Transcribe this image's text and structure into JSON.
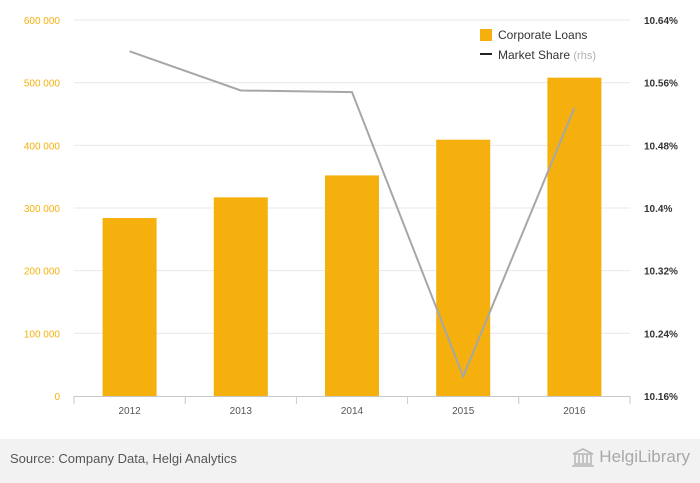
{
  "chart_data": {
    "type": "bar+line",
    "categories": [
      "2012",
      "2013",
      "2014",
      "2015",
      "2016"
    ],
    "series": [
      {
        "name": "Corporate Loans",
        "type": "bar",
        "axis": "left",
        "values": [
          284000,
          317000,
          352000,
          409000,
          508000
        ],
        "color": "#f5b00d"
      },
      {
        "name": "Market Share",
        "name_suffix": "(rhs)",
        "type": "line",
        "axis": "right",
        "values": [
          10.6,
          10.55,
          10.548,
          10.185,
          10.528
        ],
        "color": "#a7a7a7"
      }
    ],
    "y_left": {
      "range": [
        0,
        600000
      ],
      "ticks": [
        0,
        100000,
        200000,
        300000,
        400000,
        500000,
        600000
      ],
      "tick_labels": [
        "0",
        "100 000",
        "200 000",
        "300 000",
        "400 000",
        "500 000",
        "600 000"
      ],
      "label_color": "#f5b00d"
    },
    "y_right": {
      "range": [
        10.16,
        10.64
      ],
      "ticks": [
        10.16,
        10.24,
        10.32,
        10.4,
        10.48,
        10.56,
        10.64
      ],
      "tick_labels": [
        "10.16%",
        "10.24%",
        "10.32%",
        "10.4%",
        "10.48%",
        "10.56%",
        "10.64%"
      ],
      "label_color": "#333333"
    },
    "legend_position": "top-right",
    "grid": true
  },
  "footer": {
    "source": "Source: Company Data, Helgi Analytics",
    "logo_text": "HelgiLibrary"
  },
  "logo_icon": "library-building-icon"
}
